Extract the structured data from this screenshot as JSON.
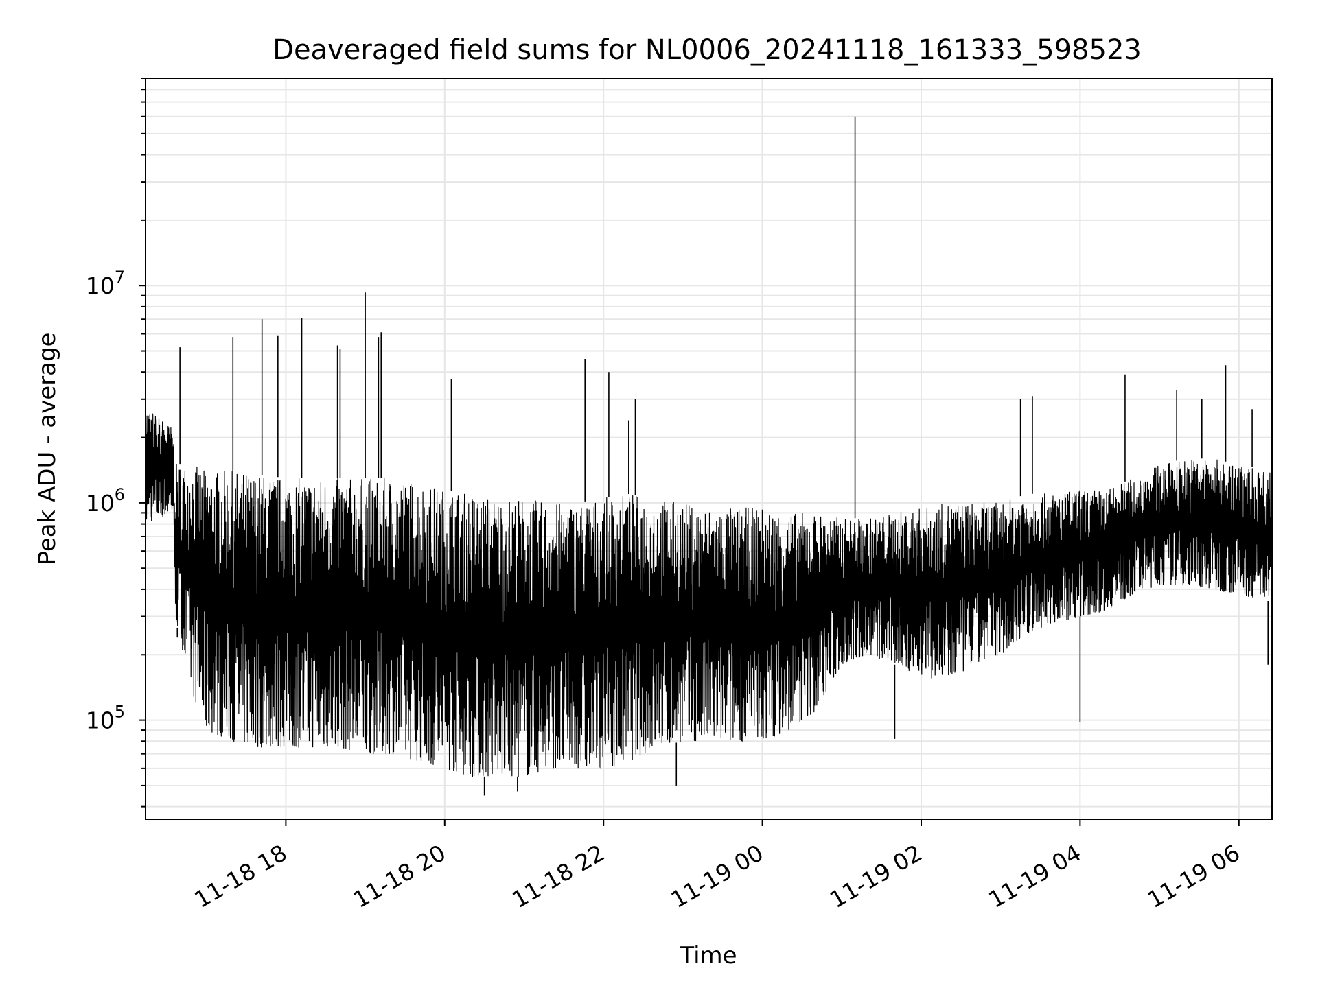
{
  "chart_data": {
    "type": "line",
    "title": "Deaveraged field sums for NL0006_20241118_161333_598523",
    "xlabel": "Time",
    "ylabel": "Peak ADU - average",
    "yscale": "log",
    "ylim": [
      35000,
      90000000
    ],
    "xlim": [
      "2024-11-18 16:14",
      "2024-11-19 06:25"
    ],
    "grid": true,
    "line_color": "#000000",
    "x_ticks": [
      "11-18 18",
      "11-18 20",
      "11-18 22",
      "11-19 00",
      "11-19 02",
      "11-19 04",
      "11-19 06"
    ],
    "y_ticks": [
      {
        "base": "10",
        "exp": "5"
      },
      {
        "base": "10",
        "exp": "6"
      },
      {
        "base": "10",
        "exp": "7"
      }
    ],
    "series": [
      {
        "x": [
          "2024-11-18 16:14",
          "2024-11-18 16:35",
          "2024-11-18 16:36",
          "2024-11-18 16:50",
          "2024-11-18 17:00",
          "2024-11-18 17:20",
          "2024-11-18 17:40",
          "2024-11-18 18:00",
          "2024-11-18 18:20",
          "2024-11-18 18:40",
          "2024-11-18 19:00",
          "2024-11-18 19:20",
          "2024-11-18 19:40",
          "2024-11-18 20:00",
          "2024-11-18 20:20",
          "2024-11-18 20:40",
          "2024-11-18 21:00",
          "2024-11-18 21:20",
          "2024-11-18 21:40",
          "2024-11-18 22:00",
          "2024-11-18 22:20",
          "2024-11-18 22:40",
          "2024-11-18 23:00",
          "2024-11-18 23:20",
          "2024-11-18 23:40",
          "2024-11-19 00:00",
          "2024-11-19 00:20",
          "2024-11-19 00:40",
          "2024-11-19 01:00",
          "2024-11-19 01:20",
          "2024-11-19 01:40",
          "2024-11-19 02:00",
          "2024-11-19 02:20",
          "2024-11-19 02:40",
          "2024-11-19 03:00",
          "2024-11-19 03:20",
          "2024-11-19 03:40",
          "2024-11-19 04:00",
          "2024-11-19 04:20",
          "2024-11-19 04:40",
          "2024-11-19 05:00",
          "2024-11-19 05:20",
          "2024-11-19 05:40",
          "2024-11-19 06:00",
          "2024-11-19 06:25"
        ],
        "upper": [
          2800000,
          2200000,
          1500000,
          1500000,
          1400000,
          1400000,
          1350000,
          1300000,
          1300000,
          1300000,
          1300000,
          1300000,
          1250000,
          1150000,
          1100000,
          1050000,
          1050000,
          1000000,
          1000000,
          1050000,
          1100000,
          1050000,
          1000000,
          950000,
          950000,
          950000,
          900000,
          900000,
          850000,
          850000,
          900000,
          950000,
          1000000,
          1000000,
          1000000,
          1100000,
          1100000,
          1150000,
          1150000,
          1300000,
          1500000,
          1600000,
          1600000,
          1500000,
          1400000
        ],
        "lower": [
          800000,
          900000,
          300000,
          130000,
          90000,
          80000,
          75000,
          75000,
          75000,
          75000,
          70000,
          70000,
          65000,
          60000,
          55000,
          55000,
          55000,
          60000,
          60000,
          60000,
          65000,
          75000,
          80000,
          80000,
          80000,
          80000,
          90000,
          110000,
          180000,
          200000,
          180000,
          160000,
          150000,
          180000,
          200000,
          250000,
          280000,
          300000,
          320000,
          380000,
          420000,
          420000,
          400000,
          380000,
          350000
        ],
        "spikes": [
          {
            "x": "2024-11-18 16:40",
            "y": 5200000
          },
          {
            "x": "2024-11-18 17:20",
            "y": 5800000
          },
          {
            "x": "2024-11-18 17:42",
            "y": 7000000
          },
          {
            "x": "2024-11-18 17:54",
            "y": 5900000
          },
          {
            "x": "2024-11-18 18:12",
            "y": 7100000
          },
          {
            "x": "2024-11-18 18:39",
            "y": 5300000
          },
          {
            "x": "2024-11-18 18:41",
            "y": 5100000
          },
          {
            "x": "2024-11-18 19:00",
            "y": 9300000
          },
          {
            "x": "2024-11-18 19:10",
            "y": 5800000
          },
          {
            "x": "2024-11-18 19:12",
            "y": 6100000
          },
          {
            "x": "2024-11-18 20:05",
            "y": 3700000
          },
          {
            "x": "2024-11-18 21:46",
            "y": 4600000
          },
          {
            "x": "2024-11-18 22:04",
            "y": 4000000
          },
          {
            "x": "2024-11-18 22:19",
            "y": 2400000
          },
          {
            "x": "2024-11-18 22:24",
            "y": 3000000
          },
          {
            "x": "2024-11-19 01:10",
            "y": 60000000
          },
          {
            "x": "2024-11-19 03:15",
            "y": 3000000
          },
          {
            "x": "2024-11-19 03:24",
            "y": 3100000
          },
          {
            "x": "2024-11-19 04:34",
            "y": 3900000
          },
          {
            "x": "2024-11-19 05:13",
            "y": 3300000
          },
          {
            "x": "2024-11-19 05:32",
            "y": 3000000
          },
          {
            "x": "2024-11-19 05:50",
            "y": 4300000
          },
          {
            "x": "2024-11-19 06:10",
            "y": 2700000
          }
        ],
        "dips": [
          {
            "x": "2024-11-18 16:38",
            "y": 240000
          },
          {
            "x": "2024-11-18 20:30",
            "y": 45000
          },
          {
            "x": "2024-11-18 20:55",
            "y": 47000
          },
          {
            "x": "2024-11-18 22:55",
            "y": 50000
          },
          {
            "x": "2024-11-19 01:40",
            "y": 82000
          },
          {
            "x": "2024-11-19 04:00",
            "y": 98000
          },
          {
            "x": "2024-11-19 06:22",
            "y": 180000
          }
        ]
      }
    ]
  }
}
